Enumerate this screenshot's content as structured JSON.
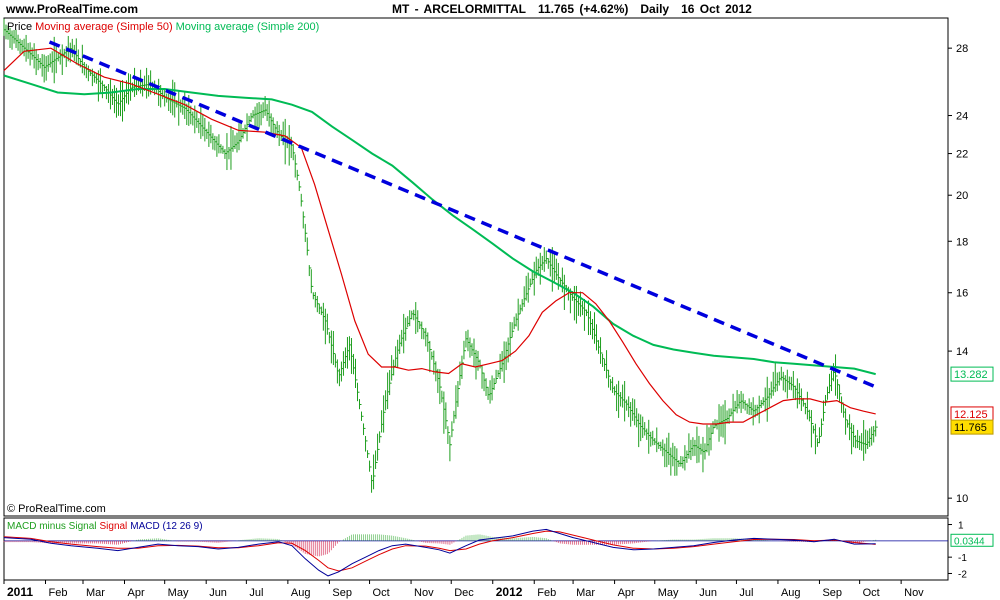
{
  "header": {
    "site": "www.ProRealTime.com",
    "symbol": "MT - ARCELORMITTAL",
    "quote": "11.765 (+4.62%)",
    "period": "Daily",
    "date": "16 Oct 2012"
  },
  "watermark": "© ProRealTime.com",
  "colors": {
    "ma50": "#dd0000",
    "ma200": "#00bb55",
    "trendline": "#0000dd",
    "bars": "#1e9e1e",
    "macd": "#000099",
    "signal": "#dd0000",
    "histogram": "#cc0033",
    "last_price_bg": "#ffdd00"
  },
  "chart_data": [
    {
      "type": "line",
      "panel": "price",
      "legend": [
        {
          "label": "Price",
          "color": "#000000"
        },
        {
          "label": "Moving average (Simple 50)",
          "color": "#dd0000"
        },
        {
          "label": "Moving average (Simple 200)",
          "color": "#00bb55"
        }
      ],
      "y_scale": "log",
      "ylim": [
        9.6,
        30
      ],
      "y_ticks": [
        10,
        14,
        16,
        18,
        20,
        22,
        24,
        28
      ],
      "price_labels": {
        "ma200": "13.282",
        "ma50": "12.125",
        "last": "11.765"
      },
      "x_labels": [
        {
          "label": "2011",
          "t": 0,
          "bold": true
        },
        {
          "label": "Feb",
          "t": 31
        },
        {
          "label": "Mar",
          "t": 59
        },
        {
          "label": "Apr",
          "t": 90
        },
        {
          "label": "May",
          "t": 120
        },
        {
          "label": "Jun",
          "t": 151
        },
        {
          "label": "Jul",
          "t": 181
        },
        {
          "label": "Aug",
          "t": 212
        },
        {
          "label": "Sep",
          "t": 243
        },
        {
          "label": "Oct",
          "t": 273
        },
        {
          "label": "Nov",
          "t": 304
        },
        {
          "label": "Dec",
          "t": 334
        },
        {
          "label": "2012",
          "t": 365,
          "bold": true
        },
        {
          "label": "Feb",
          "t": 396
        },
        {
          "label": "Mar",
          "t": 425
        },
        {
          "label": "Apr",
          "t": 456
        },
        {
          "label": "May",
          "t": 486
        },
        {
          "label": "Jun",
          "t": 517
        },
        {
          "label": "Jul",
          "t": 547
        },
        {
          "label": "Aug",
          "t": 578
        },
        {
          "label": "Sep",
          "t": 609
        },
        {
          "label": "Oct",
          "t": 639
        },
        {
          "label": "Nov",
          "t": 670
        }
      ],
      "price_path": [
        [
          0,
          29.2
        ],
        [
          10,
          28.4
        ],
        [
          20,
          27.6
        ],
        [
          30,
          26.8
        ],
        [
          40,
          27.4
        ],
        [
          50,
          28.0
        ],
        [
          60,
          26.8
        ],
        [
          75,
          25.6
        ],
        [
          85,
          24.6
        ],
        [
          95,
          25.6
        ],
        [
          110,
          25.8
        ],
        [
          120,
          25.0
        ],
        [
          135,
          24.4
        ],
        [
          150,
          23.2
        ],
        [
          165,
          22.0
        ],
        [
          175,
          22.6
        ],
        [
          185,
          24.0
        ],
        [
          195,
          24.3
        ],
        [
          205,
          23.0
        ],
        [
          215,
          22.4
        ],
        [
          221,
          20.2
        ],
        [
          230,
          16.0
        ],
        [
          240,
          15.0
        ],
        [
          250,
          13.2
        ],
        [
          258,
          14.2
        ],
        [
          265,
          12.5
        ],
        [
          275,
          10.3
        ],
        [
          285,
          12.5
        ],
        [
          295,
          14.2
        ],
        [
          305,
          15.3
        ],
        [
          315,
          14.5
        ],
        [
          325,
          13.0
        ],
        [
          333,
          11.3
        ],
        [
          345,
          14.4
        ],
        [
          355,
          13.6
        ],
        [
          362,
          12.6
        ],
        [
          372,
          13.6
        ],
        [
          382,
          15.0
        ],
        [
          392,
          16.2
        ],
        [
          398,
          16.9
        ],
        [
          405,
          17.3
        ],
        [
          412,
          16.7
        ],
        [
          425,
          15.8
        ],
        [
          435,
          15.3
        ],
        [
          445,
          14.0
        ],
        [
          455,
          12.8
        ],
        [
          465,
          12.4
        ],
        [
          475,
          11.8
        ],
        [
          485,
          11.4
        ],
        [
          495,
          11.1
        ],
        [
          505,
          10.8
        ],
        [
          515,
          11.3
        ],
        [
          523,
          11.1
        ],
        [
          530,
          11.8
        ],
        [
          540,
          12.0
        ],
        [
          550,
          12.5
        ],
        [
          560,
          12.2
        ],
        [
          570,
          12.6
        ],
        [
          580,
          13.2
        ],
        [
          590,
          12.9
        ],
        [
          600,
          12.2
        ],
        [
          608,
          11.3
        ],
        [
          614,
          12.6
        ],
        [
          620,
          13.4
        ],
        [
          628,
          12.0
        ],
        [
          636,
          11.4
        ],
        [
          644,
          11.3
        ],
        [
          651,
          11.765
        ]
      ],
      "ma50_path": [
        [
          0,
          26.6
        ],
        [
          15,
          27.8
        ],
        [
          35,
          28.0
        ],
        [
          55,
          27.0
        ],
        [
          75,
          26.2
        ],
        [
          95,
          25.8
        ],
        [
          115,
          25.2
        ],
        [
          135,
          24.6
        ],
        [
          155,
          23.8
        ],
        [
          175,
          23.2
        ],
        [
          195,
          23.1
        ],
        [
          210,
          22.9
        ],
        [
          222,
          22.3
        ],
        [
          232,
          20.5
        ],
        [
          242,
          18.5
        ],
        [
          252,
          16.7
        ],
        [
          262,
          15.0
        ],
        [
          272,
          13.9
        ],
        [
          282,
          13.5
        ],
        [
          292,
          13.5
        ],
        [
          302,
          13.4
        ],
        [
          312,
          13.45
        ],
        [
          322,
          13.35
        ],
        [
          332,
          13.3
        ],
        [
          342,
          13.6
        ],
        [
          352,
          13.5
        ],
        [
          362,
          13.6
        ],
        [
          372,
          13.7
        ],
        [
          382,
          14.0
        ],
        [
          392,
          14.5
        ],
        [
          402,
          15.3
        ],
        [
          412,
          15.7
        ],
        [
          422,
          16.0
        ],
        [
          432,
          16.0
        ],
        [
          442,
          15.6
        ],
        [
          452,
          15.0
        ],
        [
          462,
          14.3
        ],
        [
          472,
          13.6
        ],
        [
          482,
          13.0
        ],
        [
          492,
          12.5
        ],
        [
          502,
          12.1
        ],
        [
          512,
          11.9
        ],
        [
          522,
          11.85
        ],
        [
          532,
          11.85
        ],
        [
          542,
          11.9
        ],
        [
          552,
          11.9
        ],
        [
          562,
          12.1
        ],
        [
          572,
          12.3
        ],
        [
          582,
          12.5
        ],
        [
          592,
          12.55
        ],
        [
          602,
          12.55
        ],
        [
          612,
          12.45
        ],
        [
          622,
          12.5
        ],
        [
          632,
          12.3
        ],
        [
          642,
          12.2
        ],
        [
          651,
          12.125
        ]
      ],
      "ma200_path": [
        [
          0,
          26.3
        ],
        [
          20,
          25.8
        ],
        [
          40,
          25.3
        ],
        [
          60,
          25.2
        ],
        [
          80,
          25.3
        ],
        [
          100,
          25.5
        ],
        [
          120,
          25.5
        ],
        [
          140,
          25.3
        ],
        [
          160,
          25.1
        ],
        [
          180,
          25.0
        ],
        [
          200,
          24.9
        ],
        [
          215,
          24.6
        ],
        [
          230,
          24.2
        ],
        [
          245,
          23.4
        ],
        [
          260,
          22.7
        ],
        [
          275,
          22.0
        ],
        [
          290,
          21.4
        ],
        [
          305,
          20.6
        ],
        [
          320,
          19.8
        ],
        [
          335,
          19.1
        ],
        [
          350,
          18.5
        ],
        [
          365,
          17.9
        ],
        [
          380,
          17.3
        ],
        [
          395,
          16.8
        ],
        [
          410,
          16.4
        ],
        [
          425,
          16.0
        ],
        [
          440,
          15.5
        ],
        [
          455,
          14.9
        ],
        [
          470,
          14.5
        ],
        [
          485,
          14.2
        ],
        [
          500,
          14.05
        ],
        [
          515,
          13.95
        ],
        [
          530,
          13.85
        ],
        [
          545,
          13.8
        ],
        [
          560,
          13.75
        ],
        [
          575,
          13.65
        ],
        [
          590,
          13.6
        ],
        [
          605,
          13.55
        ],
        [
          620,
          13.5
        ],
        [
          635,
          13.45
        ],
        [
          651,
          13.282
        ]
      ],
      "trendline": [
        [
          34,
          28.4
        ],
        [
          651,
          12.9
        ]
      ]
    },
    {
      "type": "line",
      "panel": "macd",
      "legend": [
        {
          "label": "MACD minus Signal",
          "color": "#1e9e1e"
        },
        {
          "label": "Signal",
          "color": "#dd0000"
        },
        {
          "label": "MACD (12 26 9)",
          "color": "#000099"
        }
      ],
      "ylim": [
        -2.4,
        1.4
      ],
      "y_ticks": [
        1,
        -1,
        -2
      ],
      "last_label": "0.0344",
      "macd_path": [
        [
          0,
          0.2
        ],
        [
          20,
          0.1
        ],
        [
          35,
          -0.15
        ],
        [
          50,
          -0.3
        ],
        [
          70,
          -0.45
        ],
        [
          85,
          -0.6
        ],
        [
          100,
          -0.4
        ],
        [
          115,
          -0.2
        ],
        [
          130,
          -0.3
        ],
        [
          145,
          -0.35
        ],
        [
          160,
          -0.5
        ],
        [
          175,
          -0.4
        ],
        [
          190,
          -0.2
        ],
        [
          205,
          -0.05
        ],
        [
          215,
          -0.3
        ],
        [
          225,
          -1.1
        ],
        [
          235,
          -1.8
        ],
        [
          242,
          -2.15
        ],
        [
          250,
          -1.9
        ],
        [
          260,
          -1.4
        ],
        [
          270,
          -1.0
        ],
        [
          280,
          -0.6
        ],
        [
          290,
          -0.3
        ],
        [
          300,
          -0.2
        ],
        [
          315,
          -0.4
        ],
        [
          325,
          -0.55
        ],
        [
          333,
          -0.75
        ],
        [
          345,
          -0.3
        ],
        [
          355,
          0.05
        ],
        [
          365,
          0.15
        ],
        [
          380,
          0.3
        ],
        [
          395,
          0.6
        ],
        [
          405,
          0.7
        ],
        [
          415,
          0.45
        ],
        [
          425,
          0.2
        ],
        [
          435,
          0.0
        ],
        [
          445,
          -0.2
        ],
        [
          455,
          -0.4
        ],
        [
          470,
          -0.55
        ],
        [
          485,
          -0.5
        ],
        [
          500,
          -0.4
        ],
        [
          515,
          -0.3
        ],
        [
          530,
          -0.1
        ],
        [
          545,
          0.05
        ],
        [
          560,
          0.15
        ],
        [
          575,
          0.1
        ],
        [
          590,
          0.05
        ],
        [
          605,
          -0.05
        ],
        [
          620,
          0.1
        ],
        [
          635,
          -0.2
        ],
        [
          651,
          -0.18
        ]
      ],
      "signal_path": [
        [
          0,
          0.25
        ],
        [
          20,
          0.15
        ],
        [
          35,
          -0.05
        ],
        [
          50,
          -0.2
        ],
        [
          70,
          -0.35
        ],
        [
          85,
          -0.45
        ],
        [
          100,
          -0.45
        ],
        [
          115,
          -0.3
        ],
        [
          130,
          -0.28
        ],
        [
          145,
          -0.32
        ],
        [
          160,
          -0.42
        ],
        [
          175,
          -0.42
        ],
        [
          190,
          -0.3
        ],
        [
          205,
          -0.12
        ],
        [
          215,
          -0.15
        ],
        [
          225,
          -0.6
        ],
        [
          235,
          -1.2
        ],
        [
          242,
          -1.65
        ],
        [
          250,
          -1.85
        ],
        [
          260,
          -1.65
        ],
        [
          270,
          -1.25
        ],
        [
          280,
          -0.85
        ],
        [
          290,
          -0.5
        ],
        [
          300,
          -0.3
        ],
        [
          315,
          -0.32
        ],
        [
          325,
          -0.45
        ],
        [
          333,
          -0.6
        ],
        [
          345,
          -0.5
        ],
        [
          355,
          -0.2
        ],
        [
          365,
          0.0
        ],
        [
          380,
          0.2
        ],
        [
          395,
          0.45
        ],
        [
          405,
          0.6
        ],
        [
          415,
          0.55
        ],
        [
          425,
          0.35
        ],
        [
          435,
          0.15
        ],
        [
          445,
          -0.05
        ],
        [
          455,
          -0.25
        ],
        [
          470,
          -0.45
        ],
        [
          485,
          -0.5
        ],
        [
          500,
          -0.45
        ],
        [
          515,
          -0.35
        ],
        [
          530,
          -0.2
        ],
        [
          545,
          -0.05
        ],
        [
          560,
          0.08
        ],
        [
          575,
          0.1
        ],
        [
          590,
          0.08
        ],
        [
          605,
          0.0
        ],
        [
          620,
          0.05
        ],
        [
          635,
          -0.1
        ],
        [
          651,
          -0.22
        ]
      ]
    }
  ]
}
